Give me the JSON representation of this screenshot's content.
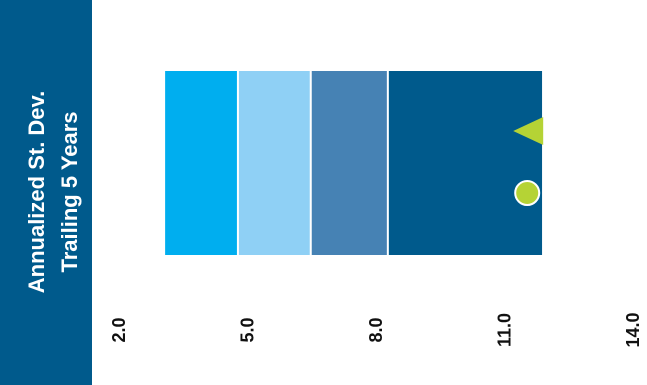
{
  "chart_data": {
    "type": "bar",
    "title": "Annualized St. Dev.",
    "subtitle": "Trailing 5 Years",
    "xlim": [
      2.0,
      14.0
    ],
    "x_ticks": [
      "2.0",
      "5.0",
      "8.0",
      "11.0",
      "14.0"
    ],
    "ranges": [
      {
        "from": 3.1,
        "to": 4.8,
        "color": "#00aeef"
      },
      {
        "from": 4.8,
        "to": 6.5,
        "color": "#8fd0f5"
      },
      {
        "from": 6.5,
        "to": 8.3,
        "color": "#4682b4"
      },
      {
        "from": 8.3,
        "to": 11.9,
        "color": "#005a8c"
      }
    ],
    "markers": [
      {
        "shape": "triangle",
        "value": 11.6,
        "color": "#b5d335"
      },
      {
        "shape": "circle",
        "value": 11.6,
        "color": "#b5d335"
      }
    ],
    "colors": {
      "title_panel": "#005a8c"
    }
  }
}
